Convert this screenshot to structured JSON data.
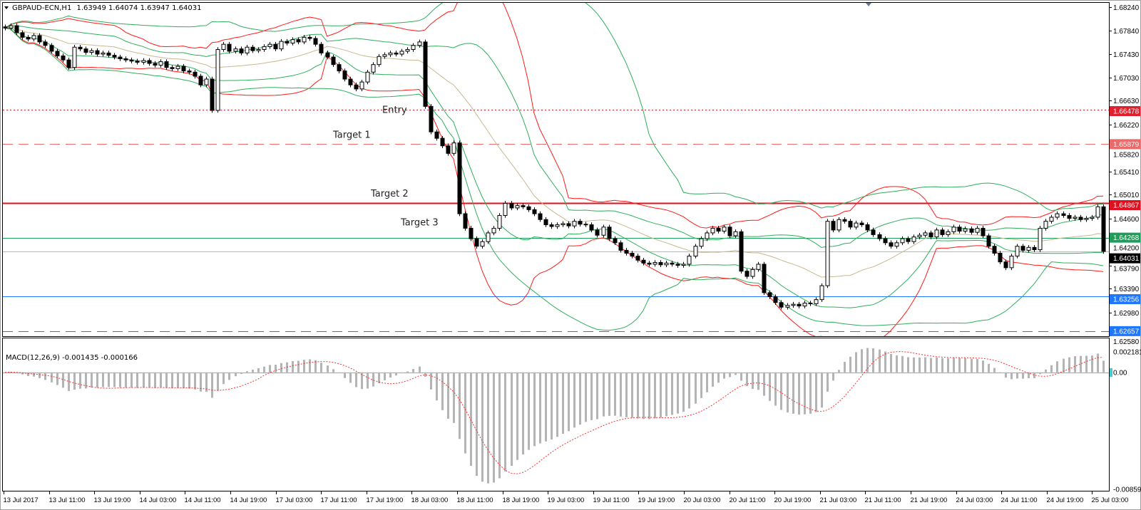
{
  "header": {
    "symbol": "GBPAUD-ECN,H1",
    "ohlc_text": "1.63949 1.64074 1.63947 1.64031"
  },
  "chart_data": {
    "type": "candlestick",
    "title": "GBPAUD-ECN,H1",
    "ylim": [
      1.6258,
      1.6824
    ],
    "grid": false,
    "closes": [
      1.6788,
      1.6792,
      1.678,
      1.6772,
      1.6769,
      1.6775,
      1.6764,
      1.6758,
      1.6748,
      1.674,
      1.6733,
      1.672,
      1.6755,
      1.6752,
      1.6746,
      1.6749,
      1.6743,
      1.6745,
      1.6741,
      1.6738,
      1.6735,
      1.6733,
      1.6731,
      1.6729,
      1.6732,
      1.6727,
      1.6724,
      1.673,
      1.672,
      1.6718,
      1.6722,
      1.6714,
      1.6712,
      1.6705,
      1.669,
      1.67,
      1.6646,
      1.6751,
      1.676,
      1.6748,
      1.6752,
      1.6745,
      1.6755,
      1.6749,
      1.6751,
      1.6756,
      1.676,
      1.6752,
      1.6765,
      1.6762,
      1.6768,
      1.6764,
      1.6772,
      1.677,
      1.676,
      1.6745,
      1.6738,
      1.6725,
      1.6714,
      1.67,
      1.669,
      1.6683,
      1.6695,
      1.6712,
      1.6725,
      1.6739,
      1.6742,
      1.6745,
      1.6743,
      1.6748,
      1.6751,
      1.6758,
      1.6764,
      1.6653,
      1.6609,
      1.6598,
      1.6585,
      1.6572,
      1.659,
      1.6468,
      1.6443,
      1.6425,
      1.6412,
      1.642,
      1.6435,
      1.6443,
      1.6465,
      1.6486,
      1.6478,
      1.6482,
      1.648,
      1.6475,
      1.6468,
      1.6458,
      1.6449,
      1.6446,
      1.6449,
      1.6451,
      1.6447,
      1.6455,
      1.645,
      1.6449,
      1.644,
      1.6431,
      1.6445,
      1.6425,
      1.6418,
      1.6405,
      1.64,
      1.6395,
      1.6388,
      1.6383,
      1.6381,
      1.6384,
      1.638,
      1.6383,
      1.6381,
      1.6379,
      1.6381,
      1.6395,
      1.6412,
      1.6425,
      1.6435,
      1.6443,
      1.6438,
      1.6445,
      1.643,
      1.6437,
      1.6369,
      1.636,
      1.6372,
      1.6381,
      1.6332,
      1.6325,
      1.6315,
      1.6307,
      1.631,
      1.6312,
      1.6309,
      1.6314,
      1.6313,
      1.632,
      1.6344,
      1.6455,
      1.644,
      1.6458,
      1.6455,
      1.6445,
      1.6452,
      1.6449,
      1.644,
      1.6432,
      1.6425,
      1.6418,
      1.6412,
      1.6418,
      1.6425,
      1.642,
      1.6428,
      1.6431,
      1.6435,
      1.6428,
      1.644,
      1.6432,
      1.6437,
      1.6445,
      1.6438,
      1.6442,
      1.6436,
      1.6443,
      1.643,
      1.6412,
      1.64,
      1.6385,
      1.6375,
      1.6395,
      1.6412,
      1.6405,
      1.641,
      1.6406,
      1.6443,
      1.6455,
      1.6462,
      1.6468,
      1.6465,
      1.646,
      1.6462,
      1.6458,
      1.646,
      1.6462,
      1.648,
      1.64031
    ],
    "price_ticks": [
      "1.68240",
      "1.67840",
      "1.67430",
      "1.67030",
      "1.66630",
      "1.66220",
      "1.65820",
      "1.65410",
      "1.65010",
      "1.64600",
      "1.64200",
      "1.63790",
      "1.63390",
      "1.62980",
      "1.62580"
    ],
    "time_ticks": [
      "13 Jul 2017",
      "13 Jul 11:00",
      "13 Jul 19:00",
      "14 Jul 03:00",
      "14 Jul 11:00",
      "14 Jul 19:00",
      "17 Jul 03:00",
      "17 Jul 11:00",
      "17 Jul 19:00",
      "18 Jul 03:00",
      "18 Jul 11:00",
      "18 Jul 19:00",
      "19 Jul 03:00",
      "19 Jul 11:00",
      "19 Jul 19:00",
      "20 Jul 03:00",
      "20 Jul 11:00",
      "20 Jul 19:00",
      "21 Jul 03:00",
      "21 Jul 11:00",
      "21 Jul 19:00",
      "24 Jul 03:00",
      "24 Jul 11:00",
      "24 Jul 19:00",
      "25 Jul 03:00"
    ],
    "levels": [
      {
        "price": 1.66478,
        "tag": "1.66478",
        "color": "#e0202e",
        "style": "dotted",
        "label": "Entry"
      },
      {
        "price": 1.65879,
        "tag": "1.65879",
        "color": "#e86a6a",
        "style": "dashed",
        "label": "Target 1"
      },
      {
        "price": 1.64867,
        "tag": "1.64867",
        "color": "#e0101e",
        "style": "solid-thick",
        "label": "Target 2"
      },
      {
        "price": 1.64268,
        "tag": "1.64268",
        "color": "#1e9e5a",
        "style": "solid",
        "label": "Target 3"
      },
      {
        "price": 1.64031,
        "tag": "1.64031",
        "color": "#000000",
        "style": "bid",
        "label": ""
      },
      {
        "price": 1.63256,
        "tag": "1.63256",
        "color": "#1e78ff",
        "style": "solid",
        "label": ""
      },
      {
        "price": 1.62657,
        "tag": "1.62657",
        "color": "#1e78ff",
        "style": "dashed",
        "label": ""
      }
    ],
    "colors": {
      "bb_outer": "#ff1a1a",
      "bb_inner": "#2fae5c",
      "ma": "#c8b88e",
      "macd_hist": "#b4b4b4",
      "macd_signal": "#ff3030"
    },
    "macd": {
      "label": "MACD(12,26,9) -0.001435 -0.000166",
      "ylim": [
        -0.00859,
        0.002181
      ],
      "ticks": [
        "0.002181",
        "0.00",
        "-0.00859"
      ]
    }
  }
}
